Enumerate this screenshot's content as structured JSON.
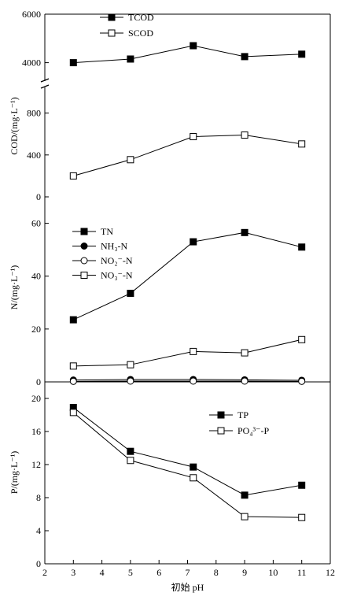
{
  "chart_data": [
    {
      "type": "line",
      "ylabel": "COD/(mg·L⁻¹)",
      "y_axis_break": {
        "lower_range": [
          0,
          1000
        ],
        "upper_range": [
          3500,
          6000
        ]
      },
      "yticks_upper": [
        4000,
        6000
      ],
      "yticks_lower": [
        0,
        400,
        800
      ],
      "legend_position": "top-left",
      "series": [
        {
          "name": "TCOD",
          "marker": "filled-square",
          "x": [
            3,
            5,
            7.2,
            9,
            11
          ],
          "values": [
            4000,
            4150,
            4700,
            4250,
            4350
          ]
        },
        {
          "name": "SCOD",
          "marker": "open-square",
          "x": [
            3,
            5,
            7.2,
            9,
            11
          ],
          "values": [
            200,
            355,
            575,
            590,
            505
          ]
        }
      ]
    },
    {
      "type": "line",
      "ylabel": "N/(mg·L⁻¹)",
      "ylim": [
        0,
        70
      ],
      "yticks": [
        0,
        20,
        40,
        60
      ],
      "legend_position": "top-left",
      "series": [
        {
          "name": "TN",
          "marker": "filled-square",
          "x": [
            3,
            5,
            7.2,
            9,
            11
          ],
          "values": [
            23.5,
            33.5,
            53,
            56.5,
            51
          ]
        },
        {
          "name": "NH₃-N",
          "marker": "filled-circle",
          "x": [
            3,
            5,
            7.2,
            9,
            11
          ],
          "values": [
            0.7,
            0.9,
            0.9,
            0.8,
            0.6
          ]
        },
        {
          "name": "NO₂⁻-N",
          "marker": "open-circle",
          "x": [
            3,
            5,
            7.2,
            9,
            11
          ],
          "values": [
            0.2,
            0.3,
            0.3,
            0.3,
            0.2
          ]
        },
        {
          "name": "NO₃⁻-N",
          "marker": "open-square",
          "x": [
            3,
            5,
            7.2,
            9,
            11
          ],
          "values": [
            6,
            6.5,
            11.5,
            11,
            16
          ]
        }
      ]
    },
    {
      "type": "line",
      "ylabel": "P/(mg·L⁻¹)",
      "ylim": [
        0,
        22
      ],
      "yticks": [
        0,
        4,
        8,
        12,
        16,
        20
      ],
      "xlabel": "初始 pH",
      "xlim": [
        2,
        12
      ],
      "xticks": [
        2,
        3,
        4,
        5,
        6,
        7,
        8,
        9,
        10,
        11,
        12
      ],
      "legend_position": "top-right",
      "series": [
        {
          "name": "TP",
          "marker": "filled-square",
          "x": [
            3,
            5,
            7.2,
            9,
            11
          ],
          "values": [
            18.9,
            13.6,
            11.7,
            8.3,
            9.5
          ]
        },
        {
          "name": "PO₄³⁻-P",
          "marker": "open-square",
          "x": [
            3,
            5,
            7.2,
            9,
            11
          ],
          "values": [
            18.3,
            12.5,
            10.4,
            5.7,
            5.6
          ]
        }
      ]
    }
  ]
}
